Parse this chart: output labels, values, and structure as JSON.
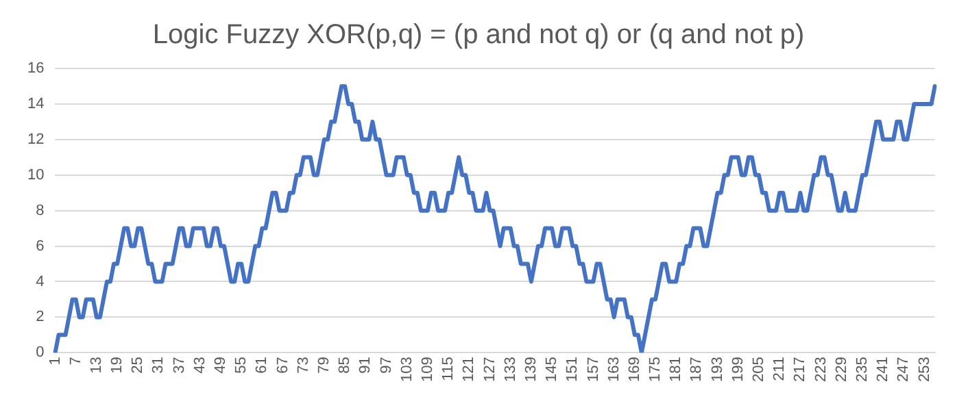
{
  "chart_data": {
    "type": "line",
    "title": "Logic Fuzzy XOR(p,q) = (p and not q) or (q and not p)",
    "categories": [
      "1",
      null,
      null,
      null,
      null,
      null,
      "7",
      null,
      null,
      null,
      null,
      null,
      "13",
      null,
      null,
      null,
      null,
      null,
      "19",
      null,
      null,
      null,
      null,
      null,
      "25",
      null,
      null,
      null,
      null,
      null,
      "31",
      null,
      null,
      null,
      null,
      null,
      "37",
      null,
      null,
      null,
      null,
      null,
      "43",
      null,
      null,
      null,
      null,
      null,
      "49",
      null,
      null,
      null,
      null,
      null,
      "55",
      null,
      null,
      null,
      null,
      null,
      "61",
      null,
      null,
      null,
      null,
      null,
      "67",
      null,
      null,
      null,
      null,
      null,
      "73",
      null,
      null,
      null,
      null,
      null,
      "79",
      null,
      null,
      null,
      null,
      null,
      "85",
      null,
      null,
      null,
      null,
      null,
      "91",
      null,
      null,
      null,
      null,
      null,
      "97",
      null,
      null,
      null,
      null,
      null,
      "103",
      null,
      null,
      null,
      null,
      null,
      "109",
      null,
      null,
      null,
      null,
      null,
      "115",
      null,
      null,
      null,
      null,
      null,
      "121",
      null,
      null,
      null,
      null,
      null,
      "127",
      null,
      null,
      null,
      null,
      null,
      "133",
      null,
      null,
      null,
      null,
      null,
      "139",
      null,
      null,
      null,
      null,
      null,
      "145",
      null,
      null,
      null,
      null,
      null,
      "151",
      null,
      null,
      null,
      null,
      null,
      "157",
      null,
      null,
      null,
      null,
      null,
      "163",
      null,
      null,
      null,
      null,
      null,
      "169",
      null,
      null,
      null,
      null,
      null,
      "175",
      null,
      null,
      null,
      null,
      null,
      "181",
      null,
      null,
      null,
      null,
      null,
      "187",
      null,
      null,
      null,
      null,
      null,
      "193",
      null,
      null,
      null,
      null,
      null,
      "199",
      null,
      null,
      null,
      null,
      null,
      "205",
      null,
      null,
      null,
      null,
      null,
      "211",
      null,
      null,
      null,
      null,
      null,
      "217",
      null,
      null,
      null,
      null,
      null,
      "223",
      null,
      null,
      null,
      null,
      null,
      "229",
      null,
      null,
      null,
      null,
      null,
      "235",
      null,
      null,
      null,
      null,
      null,
      "241",
      null,
      null,
      null,
      null,
      null,
      "247",
      null,
      null,
      null,
      null,
      null,
      "253",
      null,
      null,
      null
    ],
    "series": [
      {
        "color": "#4472c4",
        "values": [
          0,
          1,
          1,
          1,
          2,
          3,
          3,
          2,
          2,
          3,
          3,
          3,
          2,
          2,
          3,
          4,
          4,
          5,
          5,
          6,
          7,
          7,
          6,
          6,
          7,
          7,
          6,
          5,
          5,
          4,
          4,
          4,
          5,
          5,
          5,
          6,
          7,
          7,
          6,
          6,
          7,
          7,
          7,
          7,
          6,
          6,
          7,
          7,
          6,
          6,
          5,
          4,
          4,
          5,
          5,
          4,
          4,
          5,
          6,
          6,
          7,
          7,
          8,
          9,
          9,
          8,
          8,
          8,
          9,
          9,
          10,
          10,
          11,
          11,
          11,
          10,
          10,
          11,
          12,
          12,
          13,
          13,
          14,
          15,
          15,
          14,
          14,
          13,
          13,
          12,
          12,
          12,
          13,
          12,
          12,
          11,
          10,
          10,
          10,
          11,
          11,
          11,
          10,
          10,
          9,
          9,
          8,
          8,
          8,
          9,
          9,
          8,
          8,
          8,
          9,
          9,
          10,
          11,
          10,
          10,
          9,
          9,
          8,
          8,
          8,
          9,
          8,
          8,
          7,
          6,
          7,
          7,
          7,
          6,
          6,
          5,
          5,
          5,
          4,
          5,
          6,
          6,
          7,
          7,
          7,
          6,
          6,
          7,
          7,
          7,
          6,
          6,
          5,
          5,
          4,
          4,
          4,
          5,
          5,
          4,
          3,
          3,
          2,
          3,
          3,
          3,
          2,
          2,
          1,
          1,
          0,
          1,
          2,
          3,
          3,
          4,
          5,
          5,
          4,
          4,
          4,
          5,
          5,
          6,
          6,
          7,
          7,
          7,
          6,
          6,
          7,
          8,
          9,
          9,
          10,
          10,
          11,
          11,
          11,
          10,
          10,
          11,
          11,
          10,
          10,
          9,
          9,
          8,
          8,
          8,
          9,
          9,
          8,
          8,
          8,
          8,
          9,
          8,
          8,
          9,
          10,
          10,
          11,
          11,
          10,
          10,
          9,
          8,
          8,
          9,
          8,
          8,
          8,
          9,
          10,
          10,
          11,
          12,
          13,
          13,
          12,
          12,
          12,
          12,
          13,
          13,
          12,
          12,
          13,
          14,
          14,
          14,
          14,
          14,
          14,
          15
        ]
      }
    ],
    "ylim": [
      0,
      16
    ],
    "yticks": [
      0,
      2,
      4,
      6,
      8,
      10,
      12,
      14,
      16
    ],
    "grid": "y",
    "legend": false,
    "marker": "none",
    "line_style": "solid"
  }
}
